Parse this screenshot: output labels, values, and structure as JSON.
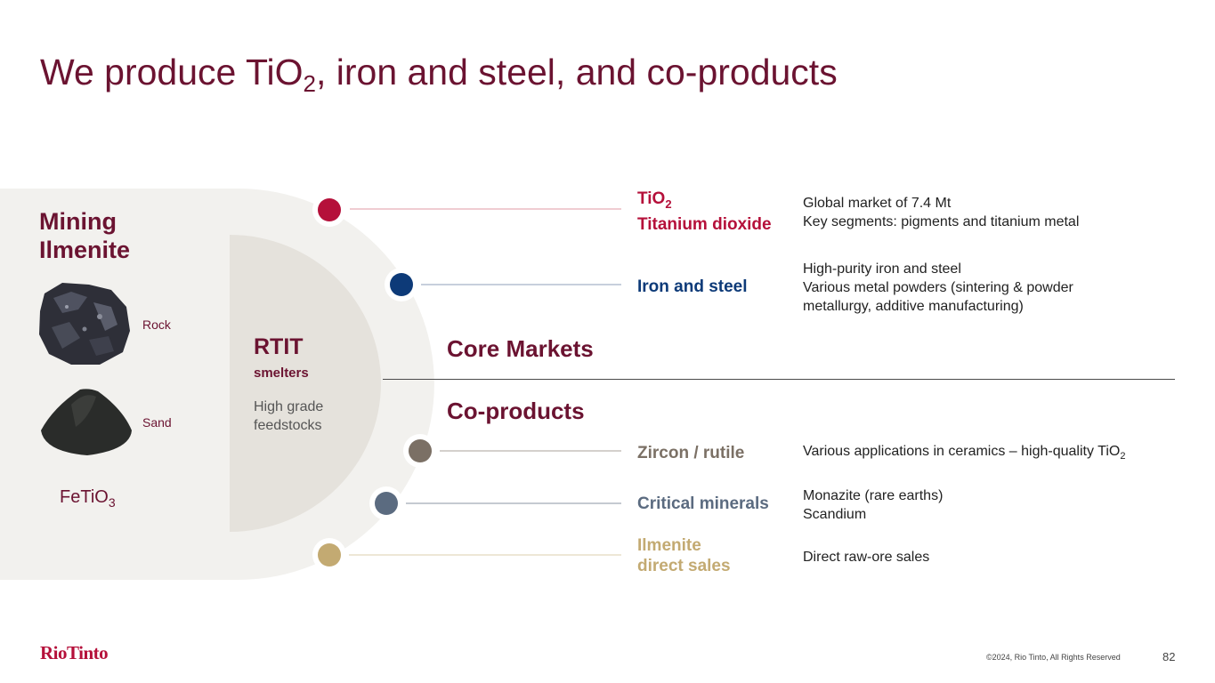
{
  "title": {
    "prefix": "We produce TiO",
    "sub": "2",
    "suffix": ", iron and steel, and co-products"
  },
  "mining": {
    "line1": "Mining",
    "line2": "Ilmenite",
    "rock_label": "Rock",
    "sand_label": "Sand",
    "formula_main": "FeTiO",
    "formula_sub": "3"
  },
  "rtit": {
    "title": "RTIT",
    "subtitle": "smelters",
    "desc": "High grade feedstocks"
  },
  "sections": {
    "core": "Core Markets",
    "coproducts": "Co-products"
  },
  "products": [
    {
      "label_line1_main": "TiO",
      "label_line1_sub": "2",
      "label_line2": "Titanium dioxide",
      "color": "#b5103a",
      "desc": [
        "Global market of 7.4 Mt",
        "Key segments: pigments and titanium metal"
      ]
    },
    {
      "label": "Iron and steel",
      "color": "#0d3a78",
      "desc": [
        "High-purity iron and steel",
        "Various metal powders (sintering & powder metallurgy, additive manufacturing)"
      ]
    },
    {
      "label": "Zircon / rutile",
      "color": "#7b7065",
      "desc_main": "Various applications in ceramics – high-quality TiO",
      "desc_sub": "2"
    },
    {
      "label": "Critical minerals",
      "color": "#5b6b80",
      "desc": [
        "Monazite (rare earths)",
        "Scandium"
      ]
    },
    {
      "label_line1": "Ilmenite",
      "label_line2": "direct sales",
      "color": "#c3aa72",
      "desc": [
        "Direct raw-ore sales"
      ]
    }
  ],
  "footer": {
    "logo": "RioTinto",
    "copyright": "©2024, Rio Tinto, All Rights Reserved",
    "page": "82"
  },
  "colors": {
    "brand": "#6b1331",
    "accent_red": "#b5103a",
    "navy": "#0d3a78",
    "taupe": "#7b7065",
    "slate": "#5b6b80",
    "gold": "#c3aa72"
  }
}
